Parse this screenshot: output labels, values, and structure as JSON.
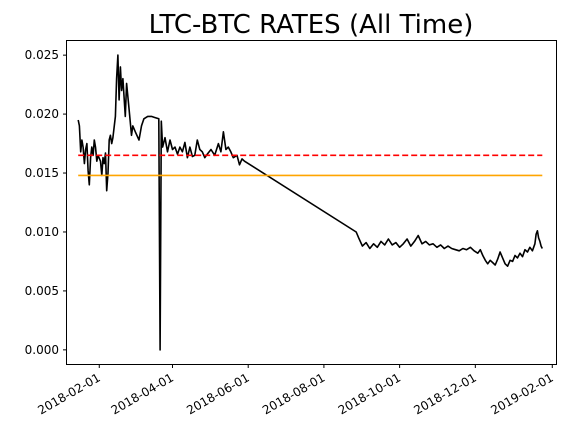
{
  "chart_data": {
    "type": "line",
    "title": "LTC-BTC RATES (All Time)",
    "xlabel": "",
    "ylabel": "",
    "x_axis_type": "date",
    "xlim": [
      "2018-01-06",
      "2019-02-04"
    ],
    "ylim": [
      -0.0012,
      0.0262
    ],
    "x_ticks": [
      "2018-02-01",
      "2018-04-01",
      "2018-06-01",
      "2018-08-01",
      "2018-10-01",
      "2018-12-01",
      "2019-02-01"
    ],
    "y_ticks": [
      0.0,
      0.005,
      0.01,
      0.015,
      0.02,
      0.025
    ],
    "y_tick_labels": [
      "0.000",
      "0.005",
      "0.010",
      "0.015",
      "0.020",
      "0.025"
    ],
    "grid": false,
    "legend": null,
    "series": [
      {
        "color": "#000000",
        "style": "solid",
        "points": [
          [
            "2018-01-15",
            0.0195
          ],
          [
            "2018-01-16",
            0.019
          ],
          [
            "2018-01-17",
            0.0168
          ],
          [
            "2018-01-18",
            0.0178
          ],
          [
            "2018-01-19",
            0.0172
          ],
          [
            "2018-01-20",
            0.0158
          ],
          [
            "2018-01-21",
            0.017
          ],
          [
            "2018-01-22",
            0.0175
          ],
          [
            "2018-01-23",
            0.0152
          ],
          [
            "2018-01-24",
            0.014
          ],
          [
            "2018-01-25",
            0.0163
          ],
          [
            "2018-01-26",
            0.0172
          ],
          [
            "2018-01-27",
            0.0165
          ],
          [
            "2018-01-28",
            0.0178
          ],
          [
            "2018-01-29",
            0.0172
          ],
          [
            "2018-01-30",
            0.016
          ],
          [
            "2018-01-31",
            0.0165
          ],
          [
            "2018-02-02",
            0.016
          ],
          [
            "2018-02-03",
            0.0148
          ],
          [
            "2018-02-04",
            0.0163
          ],
          [
            "2018-02-05",
            0.0158
          ],
          [
            "2018-02-06",
            0.0167
          ],
          [
            "2018-02-07",
            0.0135
          ],
          [
            "2018-02-08",
            0.015
          ],
          [
            "2018-02-09",
            0.0178
          ],
          [
            "2018-02-10",
            0.0182
          ],
          [
            "2018-02-11",
            0.0175
          ],
          [
            "2018-02-12",
            0.018
          ],
          [
            "2018-02-14",
            0.0198
          ],
          [
            "2018-02-15",
            0.023
          ],
          [
            "2018-02-16",
            0.025
          ],
          [
            "2018-02-17",
            0.0212
          ],
          [
            "2018-02-18",
            0.024
          ],
          [
            "2018-02-19",
            0.022
          ],
          [
            "2018-02-20",
            0.023
          ],
          [
            "2018-02-22",
            0.0198
          ],
          [
            "2018-02-23",
            0.0226
          ],
          [
            "2018-02-25",
            0.0204
          ],
          [
            "2018-02-27",
            0.0182
          ],
          [
            "2018-02-28",
            0.019
          ],
          [
            "2018-03-02",
            0.0185
          ],
          [
            "2018-03-05",
            0.0178
          ],
          [
            "2018-03-07",
            0.019
          ],
          [
            "2018-03-09",
            0.0196
          ],
          [
            "2018-03-12",
            0.0198
          ],
          [
            "2018-03-15",
            0.0198
          ],
          [
            "2018-03-18",
            0.0197
          ],
          [
            "2018-03-21",
            0.0196
          ],
          [
            "2018-03-22",
            0.0
          ],
          [
            "2018-03-23",
            0.0194
          ],
          [
            "2018-03-24",
            0.0172
          ],
          [
            "2018-03-26",
            0.018
          ],
          [
            "2018-03-28",
            0.0168
          ],
          [
            "2018-03-30",
            0.0178
          ],
          [
            "2018-04-01",
            0.017
          ],
          [
            "2018-04-03",
            0.0172
          ],
          [
            "2018-04-05",
            0.0166
          ],
          [
            "2018-04-07",
            0.0172
          ],
          [
            "2018-04-09",
            0.0168
          ],
          [
            "2018-04-11",
            0.0176
          ],
          [
            "2018-04-13",
            0.0163
          ],
          [
            "2018-04-15",
            0.0172
          ],
          [
            "2018-04-17",
            0.0164
          ],
          [
            "2018-04-19",
            0.0165
          ],
          [
            "2018-04-21",
            0.0178
          ],
          [
            "2018-04-23",
            0.017
          ],
          [
            "2018-04-25",
            0.0168
          ],
          [
            "2018-04-27",
            0.0163
          ],
          [
            "2018-04-29",
            0.0166
          ],
          [
            "2018-05-02",
            0.017
          ],
          [
            "2018-05-05",
            0.0165
          ],
          [
            "2018-05-08",
            0.0175
          ],
          [
            "2018-05-10",
            0.0168
          ],
          [
            "2018-05-12",
            0.0185
          ],
          [
            "2018-05-14",
            0.017
          ],
          [
            "2018-05-16",
            0.0172
          ],
          [
            "2018-05-18",
            0.0168
          ],
          [
            "2018-05-20",
            0.0163
          ],
          [
            "2018-05-23",
            0.0165
          ],
          [
            "2018-05-25",
            0.0157
          ],
          [
            "2018-05-27",
            0.0162
          ],
          [
            "2018-05-29",
            0.016
          ],
          [
            "2018-08-27",
            0.01
          ],
          [
            "2018-08-29",
            0.0095
          ],
          [
            "2018-09-01",
            0.0088
          ],
          [
            "2018-09-04",
            0.0091
          ],
          [
            "2018-09-07",
            0.0086
          ],
          [
            "2018-09-10",
            0.009
          ],
          [
            "2018-09-13",
            0.0087
          ],
          [
            "2018-09-16",
            0.0092
          ],
          [
            "2018-09-19",
            0.0089
          ],
          [
            "2018-09-22",
            0.0094
          ],
          [
            "2018-09-25",
            0.0089
          ],
          [
            "2018-09-28",
            0.0091
          ],
          [
            "2018-10-01",
            0.0087
          ],
          [
            "2018-10-04",
            0.009
          ],
          [
            "2018-10-07",
            0.0094
          ],
          [
            "2018-10-10",
            0.0088
          ],
          [
            "2018-10-13",
            0.0092
          ],
          [
            "2018-10-16",
            0.0097
          ],
          [
            "2018-10-19",
            0.009
          ],
          [
            "2018-10-22",
            0.0092
          ],
          [
            "2018-10-25",
            0.0089
          ],
          [
            "2018-10-28",
            0.009
          ],
          [
            "2018-10-31",
            0.0087
          ],
          [
            "2018-11-03",
            0.0089
          ],
          [
            "2018-11-06",
            0.0086
          ],
          [
            "2018-11-09",
            0.0088
          ],
          [
            "2018-11-12",
            0.0086
          ],
          [
            "2018-11-15",
            0.0085
          ],
          [
            "2018-11-18",
            0.0084
          ],
          [
            "2018-11-21",
            0.0086
          ],
          [
            "2018-11-24",
            0.0085
          ],
          [
            "2018-11-27",
            0.0087
          ],
          [
            "2018-11-30",
            0.0084
          ],
          [
            "2018-12-03",
            0.0082
          ],
          [
            "2018-12-05",
            0.0085
          ],
          [
            "2018-12-07",
            0.008
          ],
          [
            "2018-12-09",
            0.0076
          ],
          [
            "2018-12-11",
            0.0073
          ],
          [
            "2018-12-13",
            0.0076
          ],
          [
            "2018-12-15",
            0.0074
          ],
          [
            "2018-12-17",
            0.0072
          ],
          [
            "2018-12-19",
            0.0077
          ],
          [
            "2018-12-21",
            0.0083
          ],
          [
            "2018-12-23",
            0.0078
          ],
          [
            "2018-12-25",
            0.0073
          ],
          [
            "2018-12-27",
            0.0071
          ],
          [
            "2018-12-29",
            0.0076
          ],
          [
            "2018-12-31",
            0.0075
          ],
          [
            "2019-01-02",
            0.008
          ],
          [
            "2019-01-04",
            0.0078
          ],
          [
            "2019-01-06",
            0.0082
          ],
          [
            "2019-01-08",
            0.0079
          ],
          [
            "2019-01-10",
            0.0085
          ],
          [
            "2019-01-12",
            0.0083
          ],
          [
            "2019-01-14",
            0.0087
          ],
          [
            "2019-01-16",
            0.0084
          ],
          [
            "2019-01-18",
            0.009
          ],
          [
            "2019-01-19",
            0.0098
          ],
          [
            "2019-01-20",
            0.0101
          ],
          [
            "2019-01-21",
            0.0095
          ],
          [
            "2019-01-22",
            0.0092
          ],
          [
            "2019-01-23",
            0.0088
          ],
          [
            "2019-01-24",
            0.0086
          ]
        ]
      },
      {
        "color": "#ff0000",
        "style": "dashed",
        "points": [
          [
            "2018-01-15",
            0.0165
          ],
          [
            "2019-01-24",
            0.0165
          ]
        ]
      },
      {
        "color": "#ffa500",
        "style": "solid",
        "points": [
          [
            "2018-01-15",
            0.0148
          ],
          [
            "2019-01-24",
            0.0148
          ]
        ]
      }
    ]
  }
}
